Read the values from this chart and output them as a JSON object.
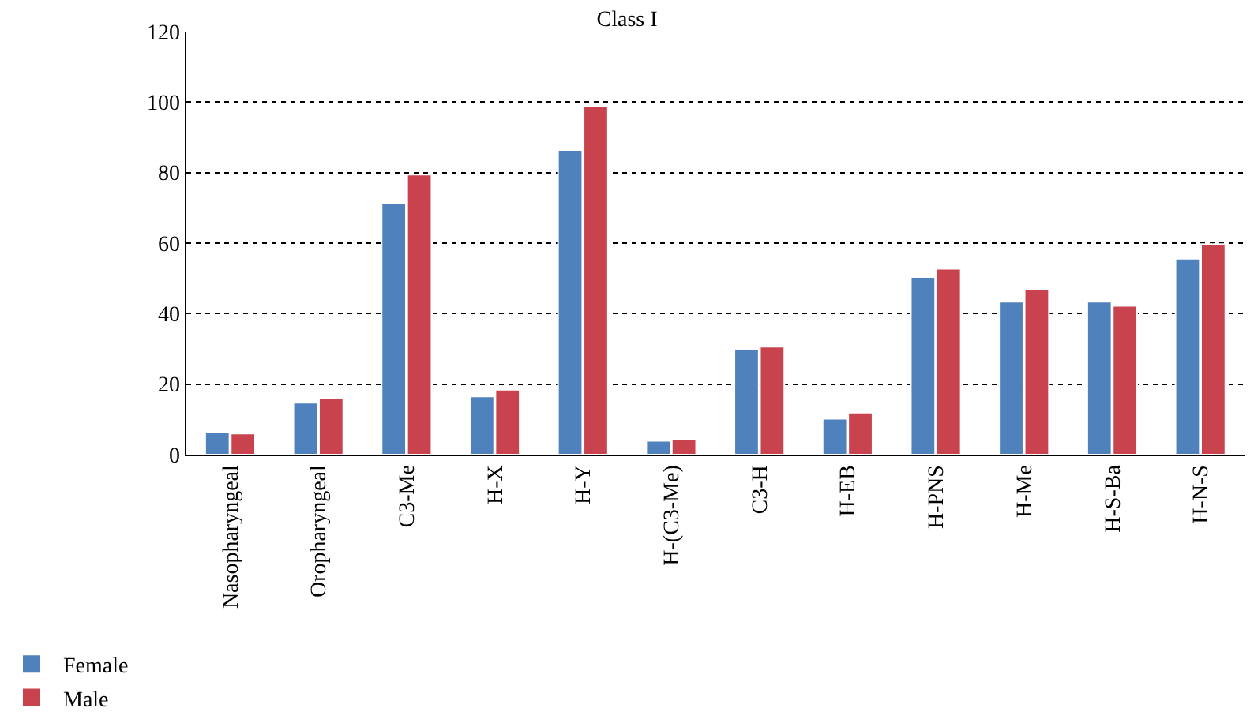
{
  "chart_data": {
    "type": "bar",
    "title": "Class I",
    "categories": [
      "Nasopharyngeal",
      "Oropharyngeal",
      "C3-Me",
      "H-X",
      "H-Y",
      "H-(C3-Me)",
      "C3-H",
      "H-EB",
      "H-PNS",
      "H-Me",
      "H-S-Ba",
      "H-N-S"
    ],
    "series": [
      {
        "name": "Female",
        "color": "#4f81bd",
        "values": [
          6.5,
          14.7,
          71.3,
          16.5,
          86.4,
          3.9,
          30.0,
          10.2,
          50.4,
          43.4,
          43.4,
          55.6
        ]
      },
      {
        "name": "Male",
        "color": "#c9434f",
        "values": [
          6.0,
          15.9,
          79.4,
          18.4,
          98.8,
          4.3,
          30.6,
          11.9,
          52.7,
          47.0,
          42.2,
          59.7
        ]
      }
    ],
    "ylim": [
      0,
      120
    ],
    "yticks": [
      0,
      20,
      40,
      60,
      80,
      100,
      120
    ],
    "grid": "y",
    "legend": "bottom left"
  }
}
